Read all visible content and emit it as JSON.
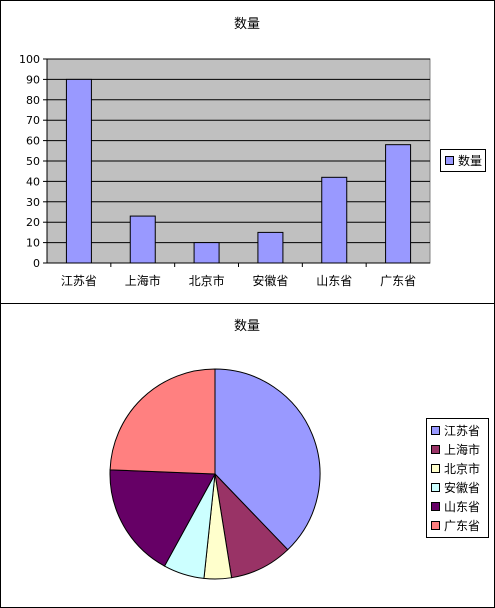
{
  "chart_data": [
    {
      "type": "bar",
      "title": "数量",
      "categories": [
        "江苏省",
        "上海市",
        "北京市",
        "安徽省",
        "山东省",
        "广东省"
      ],
      "series": [
        {
          "name": "数量",
          "values": [
            90,
            23,
            10,
            15,
            42,
            58
          ]
        }
      ],
      "ylim": [
        0,
        100
      ],
      "yticks": [
        "0",
        "10",
        "20",
        "30",
        "40",
        "50",
        "60",
        "70",
        "80",
        "90",
        "100"
      ],
      "grid": true,
      "legend": "right",
      "colors": {
        "bar": "#9999ff",
        "plot_bg": "#c0c0c0"
      }
    },
    {
      "type": "pie",
      "title": "数量",
      "categories": [
        "江苏省",
        "上海市",
        "北京市",
        "安徽省",
        "山东省",
        "广东省"
      ],
      "values": [
        90,
        23,
        10,
        15,
        42,
        58
      ],
      "legend": "right",
      "colors": [
        "#9999ff",
        "#993366",
        "#ffffcc",
        "#ccffff",
        "#660066",
        "#ff8080"
      ]
    }
  ]
}
